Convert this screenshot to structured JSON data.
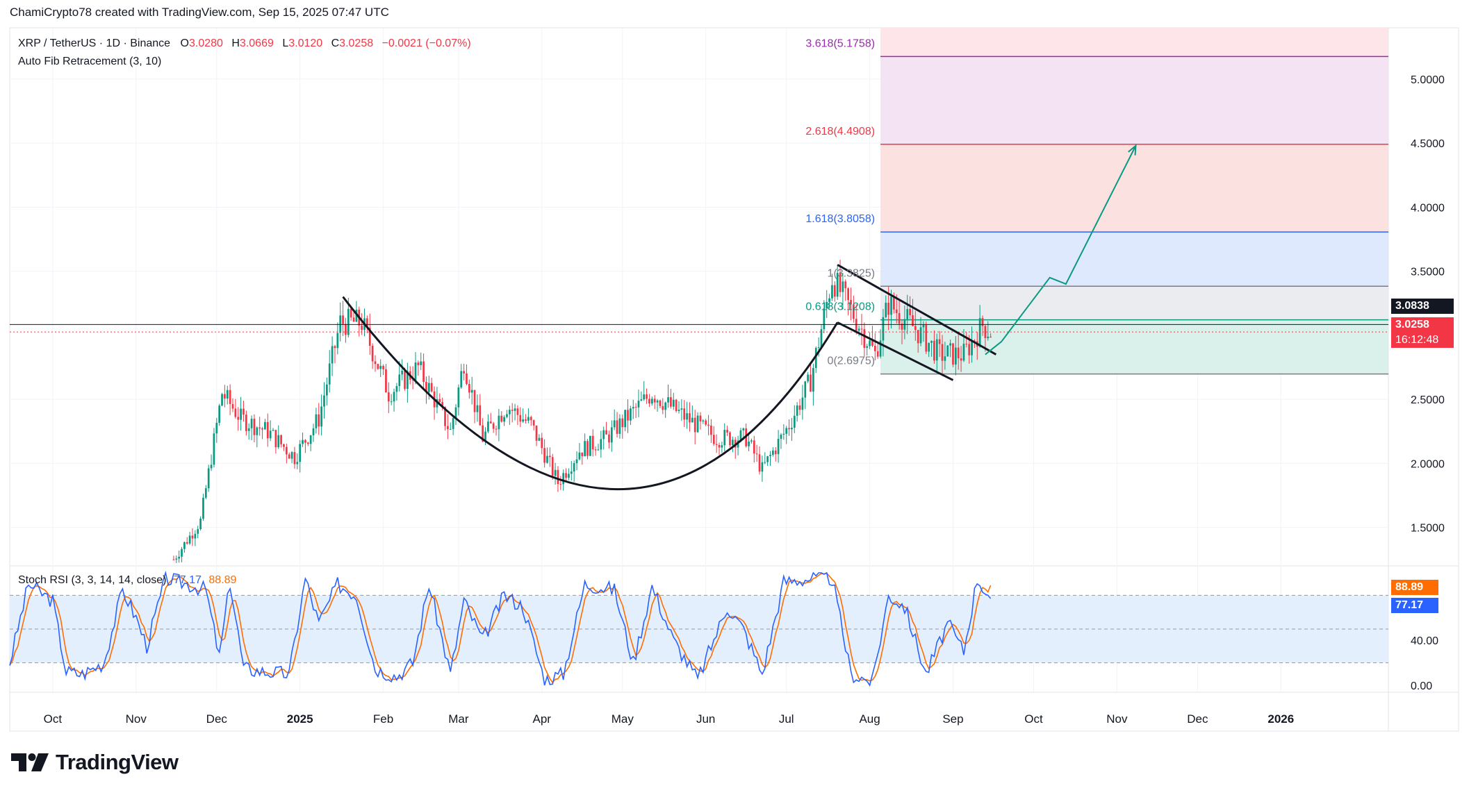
{
  "header": {
    "attribution": "ChamiCrypto78 created with TradingView.com, Sep 15, 2025 07:47 UTC"
  },
  "legend": {
    "symbol": "XRP / TetherUS · 1D · Binance",
    "o_label": "O",
    "o_value": "3.0280",
    "h_label": "H",
    "h_value": "3.0669",
    "l_label": "L",
    "l_value": "3.0120",
    "c_label": "C",
    "c_value": "3.0258",
    "change": "−0.0021 (−0.07%)",
    "indicator": "Auto Fib Retracement (3, 10)"
  },
  "stoch_legend": {
    "name": "Stoch RSI (3, 3, 14, 14, close)",
    "k": "77.17",
    "d": "88.89"
  },
  "price_axis": {
    "ticks": [
      "5.0000",
      "4.5000",
      "4.0000",
      "3.5000",
      "2.5000",
      "2.0000",
      "1.5000"
    ],
    "last_labels": {
      "level": "3.0838",
      "close": "3.0258",
      "countdown": "16:12:48"
    }
  },
  "stoch_axis": {
    "ticks": [
      "40.00",
      "0.00"
    ],
    "labels": {
      "d": "88.89",
      "k": "77.17"
    }
  },
  "time_axis": [
    "Oct",
    "Nov",
    "Dec",
    "2025",
    "Feb",
    "Mar",
    "Apr",
    "May",
    "Jun",
    "Jul",
    "Aug",
    "Sep",
    "Oct",
    "Nov",
    "Dec",
    "2026"
  ],
  "fib_levels": [
    {
      "label": "3.618(5.1758)",
      "price": 5.1758,
      "color": "#9c27b0"
    },
    {
      "label": "2.618(4.4908)",
      "price": 4.4908,
      "color": "#f23645"
    },
    {
      "label": "1.618(3.8058)",
      "price": 3.8058,
      "color": "#2962ff"
    },
    {
      "label": "1(3.3825)",
      "price": 3.3825,
      "color": "#787b86"
    },
    {
      "label": "0.618(3.1208)",
      "price": 3.1208,
      "color": "#089981"
    },
    {
      "label": "0(2.6975)",
      "price": 2.6975,
      "color": "#787b86"
    }
  ],
  "colors": {
    "up": "#089981",
    "down": "#f23645",
    "k_line": "#2962ff",
    "d_line": "#ff6d00",
    "accent": "#2962ff"
  },
  "footer": {
    "brand": "TradingView"
  },
  "chart_data": [
    {
      "type": "candlestick",
      "title": "XRP / TetherUS · 1D · Binance",
      "ylim": [
        1.2,
        5.4
      ],
      "xlabel": "",
      "ylabel": "",
      "x_range": [
        "2024-09-15",
        "2026-02-10"
      ],
      "close_price": 3.0258,
      "horizontal_line_level": 3.0838,
      "ohlc_last": {
        "open": 3.028,
        "high": 3.0669,
        "low": 3.012,
        "close": 3.0258
      },
      "path_points": [
        [
          "2024-11-15",
          1.25
        ],
        [
          "2024-11-25",
          1.55
        ],
        [
          "2024-12-03",
          2.55
        ],
        [
          "2024-12-10",
          2.35
        ],
        [
          "2024-12-20",
          2.25
        ],
        [
          "2024-12-30",
          2.05
        ],
        [
          "2025-01-08",
          2.35
        ],
        [
          "2025-01-16",
          3.1
        ],
        [
          "2025-01-24",
          3.1
        ],
        [
          "2025-02-03",
          2.55
        ],
        [
          "2025-02-14",
          2.75
        ],
        [
          "2025-02-26",
          2.25
        ],
        [
          "2025-03-03",
          2.8
        ],
        [
          "2025-03-10",
          2.2
        ],
        [
          "2025-03-19",
          2.45
        ],
        [
          "2025-03-28",
          2.3
        ],
        [
          "2025-04-07",
          1.85
        ],
        [
          "2025-04-15",
          2.1
        ],
        [
          "2025-04-25",
          2.2
        ],
        [
          "2025-05-12",
          2.55
        ],
        [
          "2025-05-25",
          2.35
        ],
        [
          "2025-06-05",
          2.2
        ],
        [
          "2025-06-16",
          2.2
        ],
        [
          "2025-06-22",
          1.95
        ],
        [
          "2025-07-02",
          2.3
        ],
        [
          "2025-07-10",
          2.65
        ],
        [
          "2025-07-18",
          3.45
        ],
        [
          "2025-07-25",
          3.2
        ],
        [
          "2025-08-03",
          2.85
        ],
        [
          "2025-08-08",
          3.25
        ],
        [
          "2025-08-18",
          3.05
        ],
        [
          "2025-08-27",
          2.85
        ],
        [
          "2025-09-05",
          2.85
        ],
        [
          "2025-09-12",
          3.08
        ],
        [
          "2025-09-15",
          3.0258
        ]
      ],
      "annotations": {
        "cup_curve": [
          [
            "2025-01-17",
            3.3
          ],
          [
            "2025-04-26",
            1.8
          ],
          [
            "2025-07-20",
            3.1
          ]
        ],
        "wedge_upper": [
          [
            "2025-07-20",
            3.55
          ],
          [
            "2025-09-17",
            2.85
          ]
        ],
        "wedge_lower": [
          [
            "2025-07-20",
            3.1
          ],
          [
            "2025-09-01",
            2.65
          ]
        ],
        "projection": [
          [
            "2025-09-13",
            2.85
          ],
          [
            "2025-09-19",
            2.95
          ],
          [
            "2025-10-07",
            3.45
          ],
          [
            "2025-10-13",
            3.4
          ],
          [
            "2025-11-08",
            4.48
          ]
        ]
      }
    },
    {
      "type": "line",
      "title": "Stoch RSI (3, 3, 14, 14, close)",
      "ylim": [
        0,
        100
      ],
      "series": [
        {
          "name": "K",
          "last": 77.17
        },
        {
          "name": "D",
          "last": 88.89
        }
      ],
      "k_points": [
        [
          "2024-09-15",
          20
        ],
        [
          "2024-09-22",
          90
        ],
        [
          "2024-10-01",
          75
        ],
        [
          "2024-10-06",
          12
        ],
        [
          "2024-10-12",
          10
        ],
        [
          "2024-10-20",
          20
        ],
        [
          "2024-10-27",
          85
        ],
        [
          "2024-11-01",
          60
        ],
        [
          "2024-11-05",
          35
        ],
        [
          "2024-11-12",
          95
        ],
        [
          "2024-11-20",
          90
        ],
        [
          "2024-11-27",
          85
        ],
        [
          "2024-12-02",
          25
        ],
        [
          "2024-12-06",
          92
        ],
        [
          "2024-12-11",
          15
        ],
        [
          "2024-12-19",
          12
        ],
        [
          "2024-12-28",
          10
        ],
        [
          "2025-01-03",
          95
        ],
        [
          "2025-01-08",
          55
        ],
        [
          "2025-01-15",
          90
        ],
        [
          "2025-01-22",
          80
        ],
        [
          "2025-01-29",
          15
        ],
        [
          "2025-02-06",
          8
        ],
        [
          "2025-02-12",
          20
        ],
        [
          "2025-02-18",
          90
        ],
        [
          "2025-02-26",
          10
        ],
        [
          "2025-03-03",
          75
        ],
        [
          "2025-03-10",
          40
        ],
        [
          "2025-03-18",
          80
        ],
        [
          "2025-03-25",
          70
        ],
        [
          "2025-04-02",
          5
        ],
        [
          "2025-04-09",
          10
        ],
        [
          "2025-04-17",
          90
        ],
        [
          "2025-04-28",
          85
        ],
        [
          "2025-05-05",
          20
        ],
        [
          "2025-05-12",
          88
        ],
        [
          "2025-05-20",
          40
        ],
        [
          "2025-05-29",
          5
        ],
        [
          "2025-06-09",
          70
        ],
        [
          "2025-06-15",
          50
        ],
        [
          "2025-06-22",
          10
        ],
        [
          "2025-06-30",
          92
        ],
        [
          "2025-07-10",
          95
        ],
        [
          "2025-07-18",
          95
        ],
        [
          "2025-07-25",
          10
        ],
        [
          "2025-08-02",
          3
        ],
        [
          "2025-08-08",
          80
        ],
        [
          "2025-08-14",
          70
        ],
        [
          "2025-08-22",
          10
        ],
        [
          "2025-08-30",
          55
        ],
        [
          "2025-09-05",
          30
        ],
        [
          "2025-09-10",
          95
        ],
        [
          "2025-09-15",
          77.17
        ]
      ]
    }
  ]
}
